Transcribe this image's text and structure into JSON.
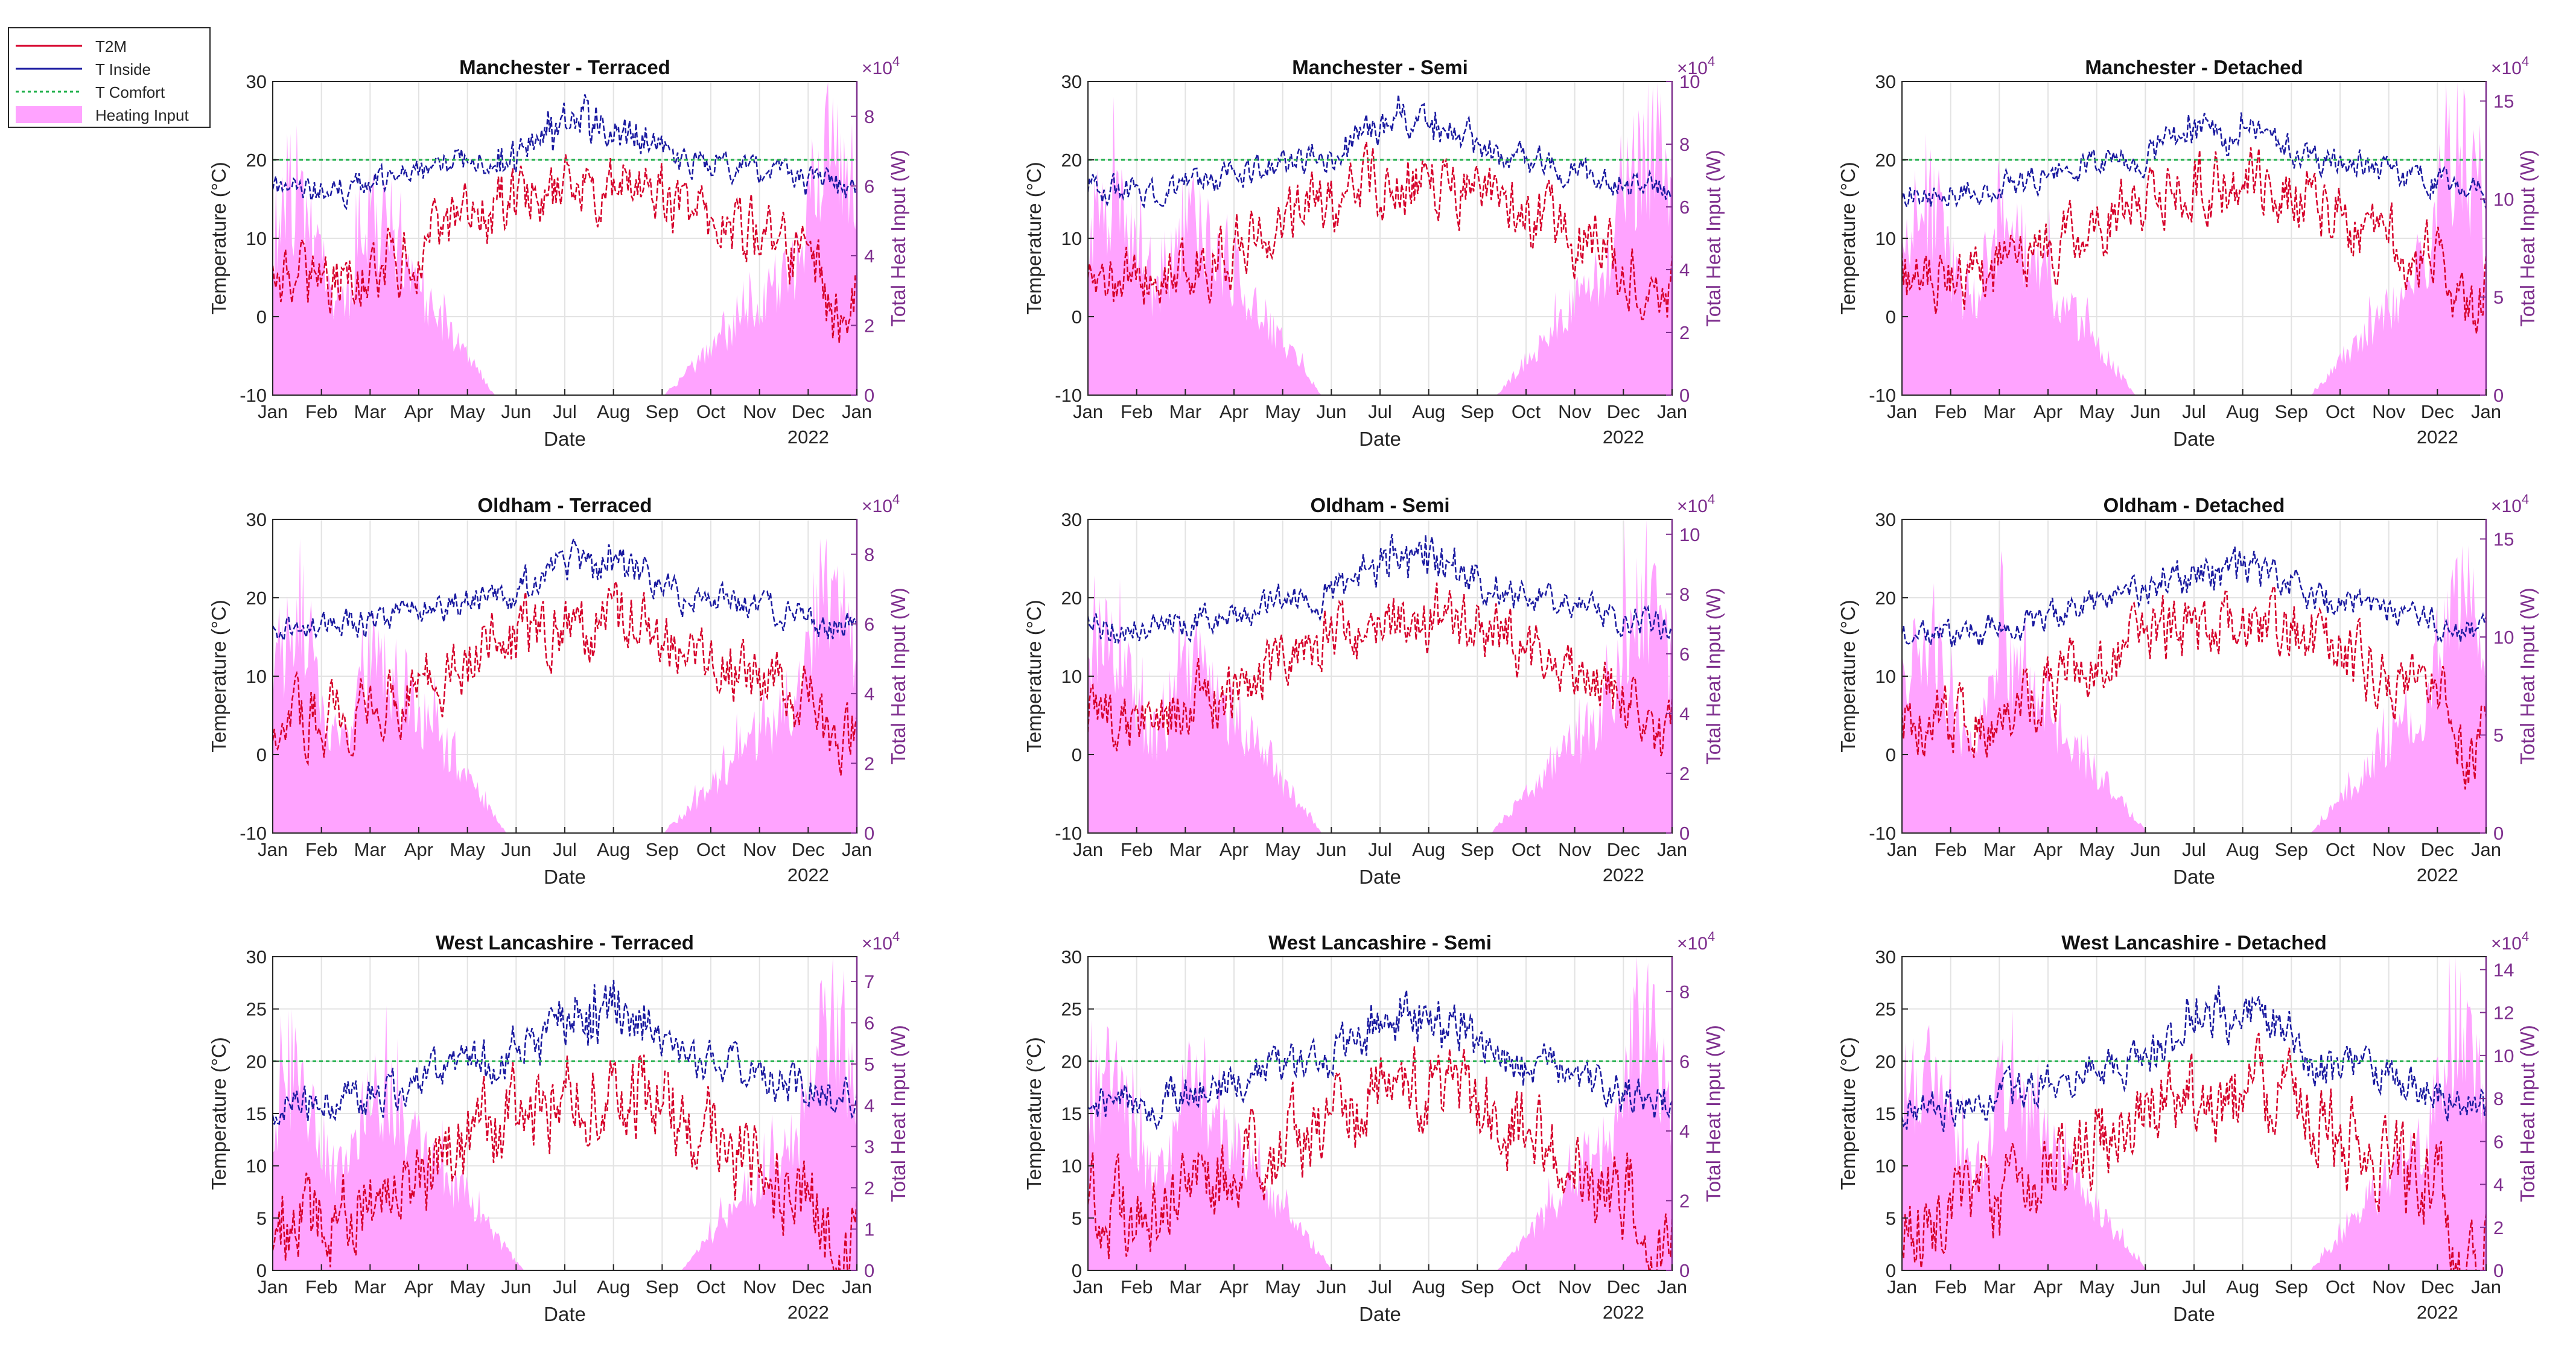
{
  "figure": {
    "legend": [
      {
        "label": "T2M",
        "style": "solid",
        "color": "#d62728"
      },
      {
        "label": "T Inside",
        "style": "solid",
        "color": "#1f1f9f"
      },
      {
        "label": "T Comfort",
        "style": "dotted",
        "color": "#2ca02c"
      },
      {
        "label": "Heating Input",
        "style": "patch",
        "color": "#ff99ff"
      }
    ],
    "colors": {
      "t2m": "#d6002a",
      "tinside": "#1a1aa0",
      "tcomfort": "#22b14c",
      "heating": "#ffa3ff",
      "right_axis": "#7e2f8e",
      "grid": "#e3e3e3",
      "axis": "#262626"
    }
  },
  "chart_data": [
    {
      "type": "line",
      "title": "Manchester - Terraced",
      "xlabel": "Date",
      "ylabel": "Temperature (°C)",
      "ylabel_right": "Total Heat Input (W)",
      "year_label": "2022",
      "x_ticks": [
        "Jan",
        "Feb",
        "Mar",
        "Apr",
        "May",
        "Jun",
        "Jul",
        "Aug",
        "Sep",
        "Oct",
        "Nov",
        "Dec",
        "Jan"
      ],
      "ylim": [
        -10,
        30
      ],
      "y_ticks": [
        -10,
        0,
        10,
        20,
        30
      ],
      "y2lim": [
        0,
        90000
      ],
      "y2_ticks": [
        0,
        2,
        4,
        6,
        8
      ],
      "y2_exponent": "×10",
      "y2_exponent_power": "4",
      "profile": {
        "summer_gap": [
          0.38,
          0.67
        ],
        "heat_winter": 0.78,
        "heat_dec_peak": 0.98,
        "tin_winter": 16,
        "tin_summer_peak": 26.5,
        "t2m_winter": 4.5,
        "t2m_summer": 17,
        "comfort": 20
      },
      "series": [
        {
          "name": "T2M"
        },
        {
          "name": "T Inside"
        },
        {
          "name": "T Comfort",
          "values": [
            20,
            20
          ]
        },
        {
          "name": "Heating Input"
        }
      ]
    },
    {
      "type": "line",
      "title": "Manchester - Semi",
      "xlabel": "Date",
      "ylabel": "Temperature (°C)",
      "ylabel_right": "Total Heat Input (W)",
      "year_label": "2022",
      "x_ticks": [
        "Jan",
        "Feb",
        "Mar",
        "Apr",
        "May",
        "Jun",
        "Jul",
        "Aug",
        "Sep",
        "Oct",
        "Nov",
        "Dec",
        "Jan"
      ],
      "ylim": [
        -10,
        30
      ],
      "y_ticks": [
        -10,
        0,
        10,
        20,
        30
      ],
      "y2lim": [
        0,
        100000
      ],
      "y2_ticks": [
        0,
        2,
        4,
        6,
        8,
        10
      ],
      "y2_exponent": "×10",
      "y2_exponent_power": "4",
      "profile": {
        "summer_gap": [
          0.4,
          0.7
        ],
        "heat_winter": 0.8,
        "heat_dec_peak": 0.99,
        "tin_winter": 16,
        "tin_summer_peak": 26,
        "t2m_winter": 4.5,
        "t2m_summer": 17,
        "comfort": 20
      },
      "series": [
        {
          "name": "T2M"
        },
        {
          "name": "T Inside"
        },
        {
          "name": "T Comfort",
          "values": [
            20,
            20
          ]
        },
        {
          "name": "Heating Input"
        }
      ]
    },
    {
      "type": "line",
      "title": "Manchester - Detached",
      "xlabel": "Date",
      "ylabel": "Temperature (°C)",
      "ylabel_right": "Total Heat Input (W)",
      "year_label": "2022",
      "x_ticks": [
        "Jan",
        "Feb",
        "Mar",
        "Apr",
        "May",
        "Jun",
        "Jul",
        "Aug",
        "Sep",
        "Oct",
        "Nov",
        "Dec",
        "Jan"
      ],
      "ylim": [
        -10,
        30
      ],
      "y_ticks": [
        -10,
        0,
        10,
        20,
        30
      ],
      "y2lim": [
        0,
        160000
      ],
      "y2_ticks": [
        0,
        5,
        10,
        15
      ],
      "y2_exponent": "×10",
      "y2_exponent_power": "4",
      "profile": {
        "summer_gap": [
          0.4,
          0.7
        ],
        "heat_winter": 0.78,
        "heat_dec_peak": 0.98,
        "tin_winter": 15.5,
        "tin_summer_peak": 25,
        "t2m_winter": 4.5,
        "t2m_summer": 17,
        "comfort": 20
      },
      "series": [
        {
          "name": "T2M"
        },
        {
          "name": "T Inside"
        },
        {
          "name": "T Comfort",
          "values": [
            20,
            20
          ]
        },
        {
          "name": "Heating Input"
        }
      ]
    },
    {
      "type": "line",
      "title": "Oldham - Terraced",
      "xlabel": "Date",
      "ylabel": "Temperature (°C)",
      "ylabel_right": "Total Heat Input (W)",
      "year_label": "2022",
      "x_ticks": [
        "Jan",
        "Feb",
        "Mar",
        "Apr",
        "May",
        "Jun",
        "Jul",
        "Aug",
        "Sep",
        "Oct",
        "Nov",
        "Dec",
        "Jan"
      ],
      "ylim": [
        -10,
        30
      ],
      "y_ticks": [
        -10,
        0,
        10,
        20,
        30
      ],
      "y2lim": [
        0,
        90000
      ],
      "y2_ticks": [
        0,
        2,
        4,
        6,
        8
      ],
      "y2_exponent": "×10",
      "y2_exponent_power": "4",
      "profile": {
        "summer_gap": [
          0.4,
          0.67
        ],
        "heat_winter": 0.8,
        "heat_dec_peak": 0.99,
        "tin_winter": 16,
        "tin_summer_peak": 27,
        "t2m_winter": 4.5,
        "t2m_summer": 17,
        "comfort": null
      },
      "series": [
        {
          "name": "T2M"
        },
        {
          "name": "T Inside"
        },
        {
          "name": "Heating Input"
        }
      ]
    },
    {
      "type": "line",
      "title": "Oldham - Semi",
      "xlabel": "Date",
      "ylabel": "Temperature (°C)",
      "ylabel_right": "Total Heat Input (W)",
      "year_label": "2022",
      "x_ticks": [
        "Jan",
        "Feb",
        "Mar",
        "Apr",
        "May",
        "Jun",
        "Jul",
        "Aug",
        "Sep",
        "Oct",
        "Nov",
        "Dec",
        "Jan"
      ],
      "ylim": [
        -10,
        30
      ],
      "y_ticks": [
        -10,
        0,
        10,
        20,
        30
      ],
      "y2lim": [
        0,
        105000
      ],
      "y2_ticks": [
        0,
        2,
        4,
        6,
        8,
        10
      ],
      "y2_exponent": "×10",
      "y2_exponent_power": "4",
      "profile": {
        "summer_gap": [
          0.4,
          0.69
        ],
        "heat_winter": 0.78,
        "heat_dec_peak": 0.98,
        "tin_winter": 16,
        "tin_summer_peak": 26.5,
        "t2m_winter": 4.5,
        "t2m_summer": 17,
        "comfort": null
      },
      "series": [
        {
          "name": "T2M"
        },
        {
          "name": "T Inside"
        },
        {
          "name": "Heating Input"
        }
      ]
    },
    {
      "type": "line",
      "title": "Oldham - Detached",
      "xlabel": "Date",
      "ylabel": "Temperature (°C)",
      "ylabel_right": "Total Heat Input (W)",
      "year_label": "2022",
      "x_ticks": [
        "Jan",
        "Feb",
        "Mar",
        "Apr",
        "May",
        "Jun",
        "Jul",
        "Aug",
        "Sep",
        "Oct",
        "Nov",
        "Dec",
        "Jan"
      ],
      "ylim": [
        -10,
        30
      ],
      "y_ticks": [
        -10,
        0,
        10,
        20,
        30
      ],
      "y2lim": [
        0,
        160000
      ],
      "y2_ticks": [
        0,
        5,
        10,
        15
      ],
      "y2_exponent": "×10",
      "y2_exponent_power": "4",
      "profile": {
        "summer_gap": [
          0.42,
          0.7
        ],
        "heat_winter": 0.78,
        "heat_dec_peak": 0.98,
        "tin_winter": 15,
        "tin_summer_peak": 25,
        "t2m_winter": 4.5,
        "t2m_summer": 17,
        "comfort": null
      },
      "series": [
        {
          "name": "T2M"
        },
        {
          "name": "T Inside"
        },
        {
          "name": "Heating Input"
        }
      ]
    },
    {
      "type": "line",
      "title": "West Lancashire - Terraced",
      "xlabel": "Date",
      "ylabel": "Temperature (°C)",
      "ylabel_right": "Total Heat Input (W)",
      "year_label": "2022",
      "x_ticks": [
        "Jan",
        "Feb",
        "Mar",
        "Apr",
        "May",
        "Jun",
        "Jul",
        "Aug",
        "Sep",
        "Oct",
        "Nov",
        "Dec",
        "Jan"
      ],
      "ylim": [
        0,
        30
      ],
      "y_ticks": [
        0,
        5,
        10,
        15,
        20,
        25,
        30
      ],
      "y2lim": [
        0,
        76000
      ],
      "y2_ticks": [
        0,
        1,
        2,
        3,
        4,
        5,
        6,
        7
      ],
      "y2_exponent": "×10",
      "y2_exponent_power": "4",
      "profile": {
        "summer_gap": [
          0.43,
          0.7
        ],
        "heat_winter": 0.8,
        "heat_dec_peak": 0.99,
        "tin_winter": 16,
        "tin_summer_peak": 26.5,
        "t2m_winter": 5,
        "t2m_summer": 17,
        "comfort": 20
      },
      "series": [
        {
          "name": "T2M"
        },
        {
          "name": "T Inside"
        },
        {
          "name": "T Comfort",
          "values": [
            20,
            20
          ]
        },
        {
          "name": "Heating Input"
        }
      ]
    },
    {
      "type": "line",
      "title": "West Lancashire - Semi",
      "xlabel": "Date",
      "ylabel": "Temperature (°C)",
      "ylabel_right": "Total Heat Input (W)",
      "year_label": "2022",
      "x_ticks": [
        "Jan",
        "Feb",
        "Mar",
        "Apr",
        "May",
        "Jun",
        "Jul",
        "Aug",
        "Sep",
        "Oct",
        "Nov",
        "Dec",
        "Jan"
      ],
      "ylim": [
        0,
        30
      ],
      "y_ticks": [
        0,
        5,
        10,
        15,
        20,
        25,
        30
      ],
      "y2lim": [
        0,
        90000
      ],
      "y2_ticks": [
        0,
        2,
        4,
        6,
        8
      ],
      "y2_exponent": "×10",
      "y2_exponent_power": "4",
      "profile": {
        "summer_gap": [
          0.42,
          0.7
        ],
        "heat_winter": 0.8,
        "heat_dec_peak": 0.99,
        "tin_winter": 16,
        "tin_summer_peak": 26,
        "t2m_winter": 5,
        "t2m_summer": 17,
        "comfort": 20
      },
      "series": [
        {
          "name": "T2M"
        },
        {
          "name": "T Inside"
        },
        {
          "name": "T Comfort",
          "values": [
            20,
            20
          ]
        },
        {
          "name": "Heating Input"
        }
      ]
    },
    {
      "type": "line",
      "title": "West Lancashire - Detached",
      "xlabel": "Date",
      "ylabel": "Temperature (°C)",
      "ylabel_right": "Total Heat Input (W)",
      "year_label": "2022",
      "x_ticks": [
        "Jan",
        "Feb",
        "Mar",
        "Apr",
        "May",
        "Jun",
        "Jul",
        "Aug",
        "Sep",
        "Oct",
        "Nov",
        "Dec",
        "Jan"
      ],
      "ylim": [
        0,
        30
      ],
      "y_ticks": [
        0,
        5,
        10,
        15,
        20,
        25,
        30
      ],
      "y2lim": [
        0,
        146000
      ],
      "y2_ticks": [
        0,
        2,
        4,
        6,
        8,
        10,
        12,
        14
      ],
      "y2_exponent": "×10",
      "y2_exponent_power": "4",
      "profile": {
        "summer_gap": [
          0.42,
          0.7
        ],
        "heat_winter": 0.8,
        "heat_dec_peak": 0.99,
        "tin_winter": 15.5,
        "tin_summer_peak": 25.5,
        "t2m_winter": 5,
        "t2m_summer": 17,
        "comfort": 20
      },
      "series": [
        {
          "name": "T2M"
        },
        {
          "name": "T Inside"
        },
        {
          "name": "T Comfort",
          "values": [
            20,
            20
          ]
        },
        {
          "name": "Heating Input"
        }
      ]
    }
  ]
}
